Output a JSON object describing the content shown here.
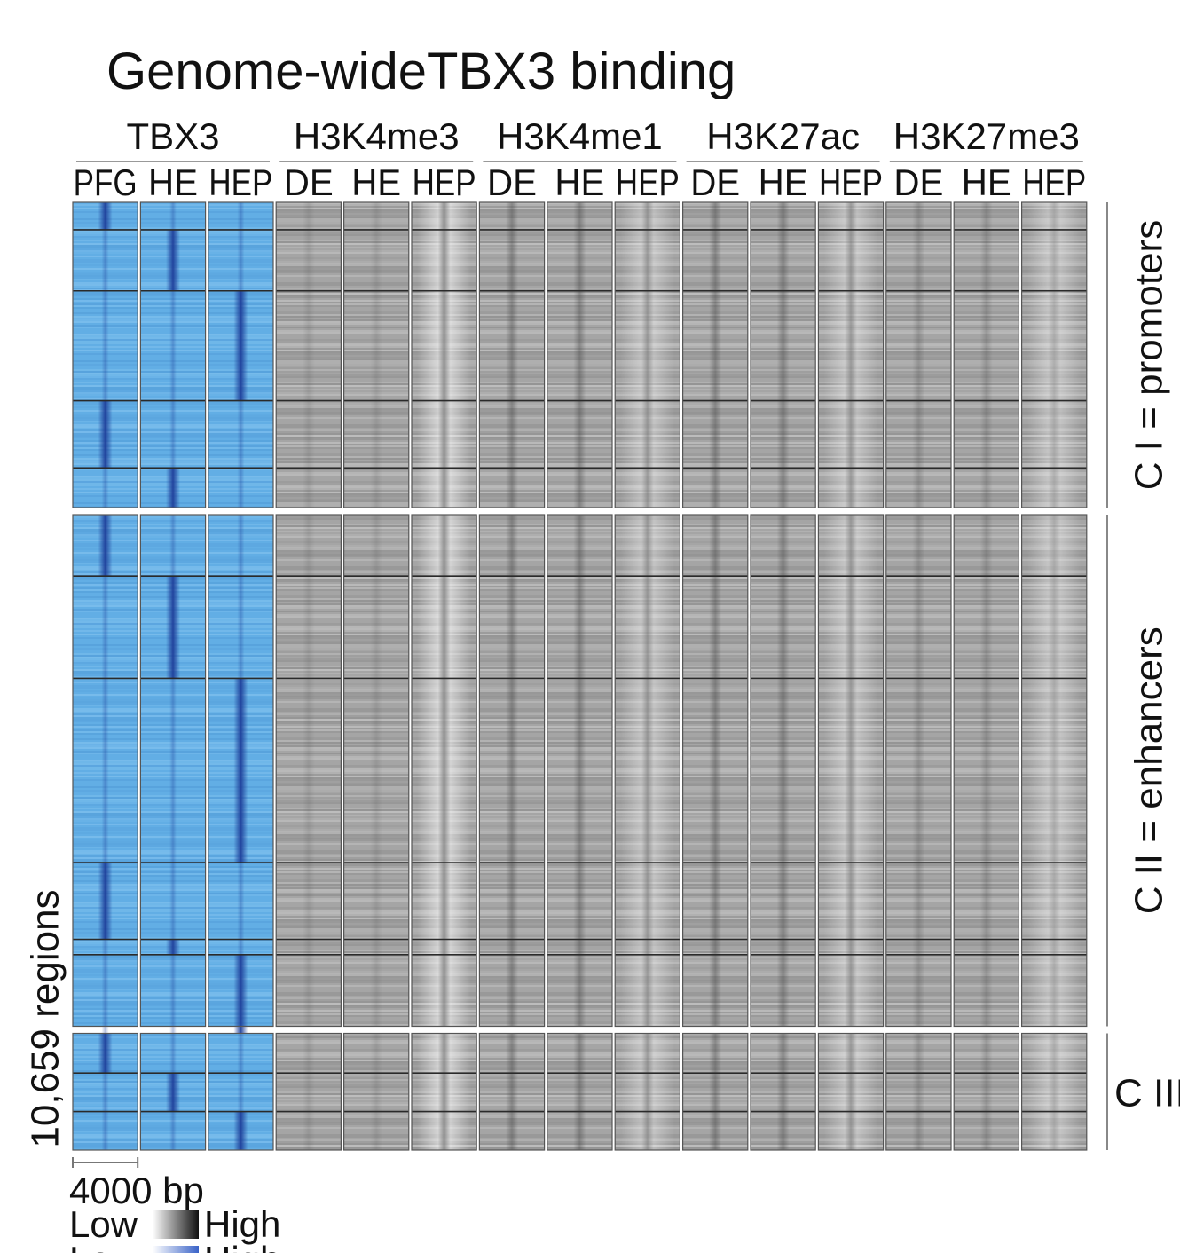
{
  "chart_data": {
    "type": "heatmap",
    "title": "Genome-wideTBX3 binding",
    "groups": [
      {
        "name": "TBX3",
        "samples": [
          "PFG",
          "HE",
          "HEP"
        ],
        "palette": "blue"
      },
      {
        "name": "H3K4me3",
        "samples": [
          "DE",
          "HE",
          "HEP"
        ],
        "palette": "gray"
      },
      {
        "name": "H3K4me1",
        "samples": [
          "DE",
          "HE",
          "HEP"
        ],
        "palette": "gray"
      },
      {
        "name": "H3K27ac",
        "samples": [
          "DE",
          "HE",
          "HEP"
        ],
        "palette": "gray"
      },
      {
        "name": "H3K27me3",
        "samples": [
          "DE",
          "HE",
          "HEP"
        ],
        "palette": "gray"
      }
    ],
    "clusters": [
      {
        "label": "C I = promoters",
        "fraction": 0.327,
        "subclusters": [
          0.09,
          0.2,
          0.36,
          0.22,
          0.13
        ]
      },
      {
        "label": "C II = enhancers",
        "fraction": 0.548,
        "subclusters": [
          0.12,
          0.2,
          0.36,
          0.15,
          0.03,
          0.16
        ]
      },
      {
        "label": "C III",
        "fraction": 0.125,
        "subclusters": [
          0.34,
          0.33,
          0.33
        ]
      }
    ],
    "ylabel": "10,659 regions",
    "scale_label": "4000 bp",
    "legend": [
      {
        "low": "Low",
        "high": "High",
        "colors": [
          "#ffffff",
          "#111111"
        ]
      },
      {
        "low": "Low",
        "high": "High",
        "colors": [
          "#ffffff",
          "#3a63c8"
        ]
      }
    ]
  }
}
